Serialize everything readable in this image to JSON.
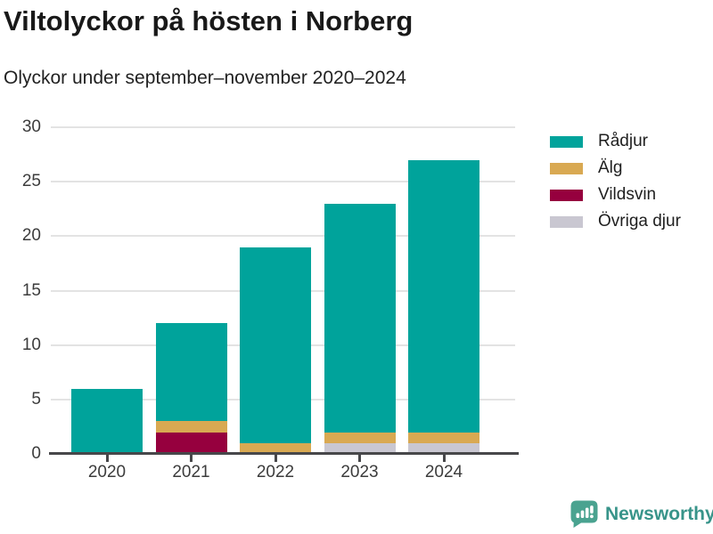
{
  "header": {
    "title": "Viltolyckor på hösten i Norberg",
    "subtitle": "Olyckor under september–november 2020–2024"
  },
  "chart_data": {
    "type": "bar",
    "stacked": true,
    "title": "Viltolyckor på hösten i Norberg",
    "subtitle": "Olyckor under september–november 2020–2024",
    "categories": [
      "2020",
      "2021",
      "2022",
      "2023",
      "2024"
    ],
    "series": [
      {
        "name": "Rådjur",
        "color": "#00a39b",
        "values": [
          6,
          9,
          18,
          21,
          25
        ]
      },
      {
        "name": "Älg",
        "color": "#d9a952",
        "values": [
          0,
          1,
          1,
          1,
          1
        ]
      },
      {
        "name": "Vildsvin",
        "color": "#96003e",
        "values": [
          0,
          2,
          0,
          0,
          0
        ]
      },
      {
        "name": "Övriga djur",
        "color": "#c9c7d1",
        "values": [
          0,
          0,
          0,
          1,
          1
        ]
      }
    ],
    "stack_order_bottom_to_top": [
      "Övriga djur",
      "Vildsvin",
      "Älg",
      "Rådjur"
    ],
    "totals": [
      6,
      12,
      19,
      23,
      27
    ],
    "yticks": [
      0,
      5,
      10,
      15,
      20,
      25,
      30
    ],
    "ylim": [
      0,
      30
    ],
    "xlabel": "",
    "ylabel": "",
    "grid": true,
    "legend_position": "top-right"
  },
  "colors": {
    "axis": "#47474a",
    "gridline": "#e3e3e3",
    "brand_teal": "#38948a",
    "brand_icon": "#4aa390"
  },
  "footer": {
    "brand": "Newsworthy"
  }
}
